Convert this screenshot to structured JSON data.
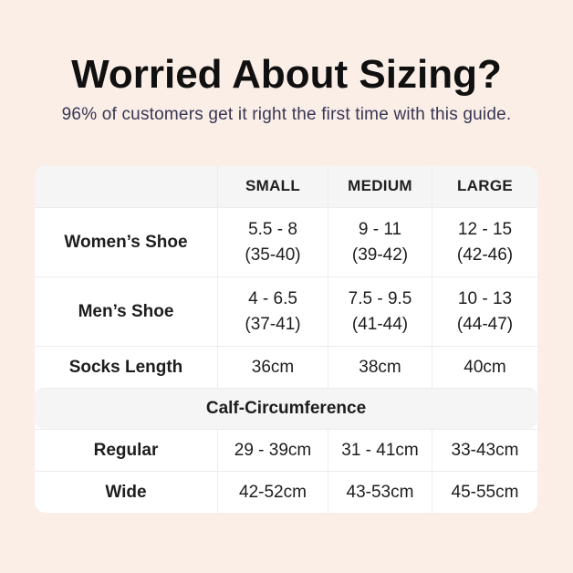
{
  "page": {
    "title": "Worried About Sizing?",
    "subtitle": "96% of customers get it right the first time with this guide."
  },
  "table": {
    "columns": [
      "",
      "SMALL",
      "MEDIUM",
      "LARGE"
    ],
    "rows": [
      {
        "label": "Women’s Shoe",
        "values": [
          "5.5 - 8\n(35-40)",
          "9 - 11\n(39-42)",
          "12 - 15\n(42-46)"
        ]
      },
      {
        "label": "Men’s Shoe",
        "values": [
          "4 - 6.5\n(37-41)",
          "7.5 - 9.5\n(41-44)",
          "10 - 13\n(44-47)"
        ]
      },
      {
        "label": "Socks Length",
        "values": [
          "36cm",
          "38cm",
          "40cm"
        ]
      }
    ],
    "section_header": "Calf-Circumference",
    "section_rows": [
      {
        "label": "Regular",
        "values": [
          "29 - 39cm",
          "31 - 41cm",
          "33-43cm"
        ]
      },
      {
        "label": "Wide",
        "values": [
          "42-52cm",
          "43-53cm",
          "45-55cm"
        ]
      }
    ]
  },
  "colors": {
    "page_background": "#fbeee7",
    "table_background": "#ffffff",
    "header_band_background": "#f5f5f5",
    "title_text": "#101010",
    "subtitle_text": "#373754",
    "table_text": "#1d1d1d",
    "divider": "#ececec"
  }
}
